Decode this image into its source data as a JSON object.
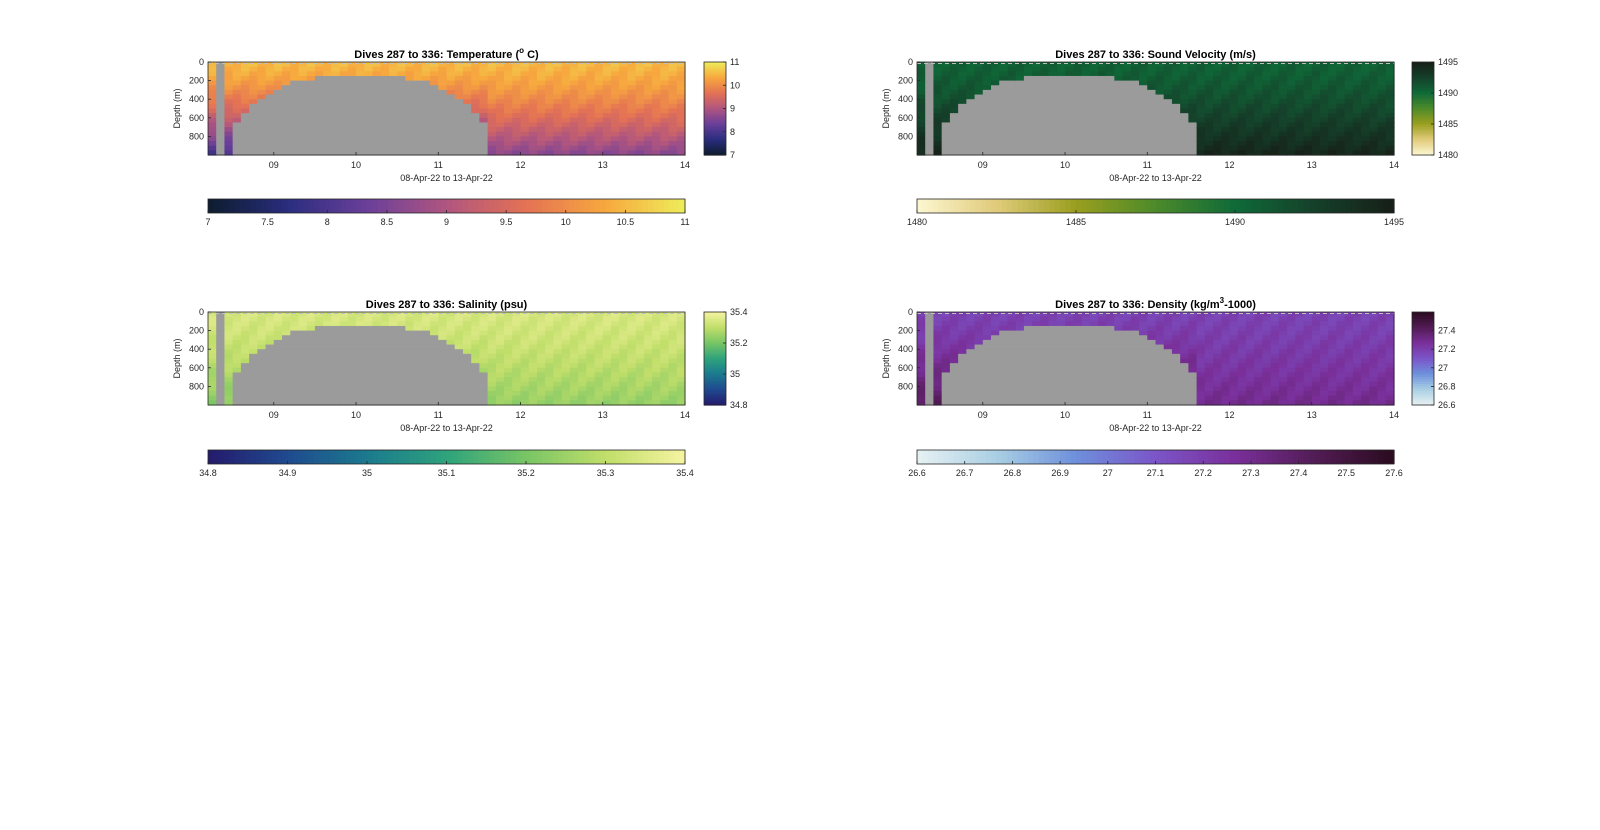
{
  "chart_data": [
    {
      "id": "temperature",
      "type": "heatmap",
      "title": "Dives 287 to 336: Temperature (",
      "title_sup": "o",
      "title_end": " C)",
      "xlabel": "08-Apr-22 to 13-Apr-22",
      "ylabel": "Depth (m)",
      "x_ticks": [
        "09",
        "10",
        "11",
        "12",
        "13",
        "14"
      ],
      "x_tick_values": [
        9,
        10,
        11,
        12,
        13,
        14
      ],
      "xlim": [
        8.2,
        14.0
      ],
      "y_ticks": [
        "0",
        "200",
        "400",
        "600",
        "800"
      ],
      "y_tick_values": [
        0,
        200,
        400,
        600,
        800
      ],
      "ylim": [
        0,
        1000
      ],
      "cbar_side_ticks": [
        "7",
        "8",
        "9",
        "10",
        "11"
      ],
      "cbar_side_values": [
        7,
        8,
        9,
        10,
        11
      ],
      "cbar_bottom_ticks": [
        "7",
        "7.5",
        "8",
        "8.5",
        "9",
        "9.5",
        "10",
        "10.5",
        "11"
      ],
      "cbar_bottom_values": [
        7,
        7.5,
        8,
        8.5,
        9,
        9.5,
        10,
        10.5,
        11
      ],
      "clim": [
        7,
        11
      ],
      "colormap": [
        "#0d1c2e",
        "#2a2d7e",
        "#6a3f9a",
        "#b0557f",
        "#e47254",
        "#f7a83e",
        "#eeed5a"
      ],
      "surface_value": 10.5,
      "deep_value_west": 7.9,
      "deep_value_east": 8.6,
      "gap_color": "#9b9b9b"
    },
    {
      "id": "sound-velocity",
      "type": "heatmap",
      "title": "Dives 287 to 336: Sound Velocity (m/s)",
      "xlabel": "08-Apr-22 to 13-Apr-22",
      "ylabel": "Depth (m)",
      "x_ticks": [
        "09",
        "10",
        "11",
        "12",
        "13",
        "14"
      ],
      "x_tick_values": [
        9,
        10,
        11,
        12,
        13,
        14
      ],
      "xlim": [
        8.2,
        14.0
      ],
      "y_ticks": [
        "0",
        "200",
        "400",
        "600",
        "800"
      ],
      "y_tick_values": [
        0,
        200,
        400,
        600,
        800
      ],
      "ylim": [
        0,
        1000
      ],
      "cbar_side_ticks": [
        "1480",
        "1485",
        "1490",
        "1495"
      ],
      "cbar_side_values": [
        1480,
        1485,
        1490,
        1495
      ],
      "cbar_bottom_ticks": [
        "1480",
        "1485",
        "1490",
        "1495"
      ],
      "cbar_bottom_values": [
        1480,
        1485,
        1490,
        1495
      ],
      "clim": [
        1480,
        1495
      ],
      "colormap": [
        "#fdf7d2",
        "#e0cb7a",
        "#9a9f1f",
        "#4c8a2a",
        "#0f6a38",
        "#15402a",
        "#161f17"
      ],
      "surface_value": 1490.5,
      "deep_value_west": 1494.5,
      "deep_value_east": 1494.5,
      "gap_color": "#9b9b9b"
    },
    {
      "id": "salinity",
      "type": "heatmap",
      "title": "Dives 287 to 336: Salinity (psu)",
      "xlabel": "08-Apr-22 to 13-Apr-22",
      "ylabel": "Depth (m)",
      "x_ticks": [
        "09",
        "10",
        "11",
        "12",
        "13",
        "14"
      ],
      "x_tick_values": [
        9,
        10,
        11,
        12,
        13,
        14
      ],
      "xlim": [
        8.2,
        14.0
      ],
      "y_ticks": [
        "0",
        "200",
        "400",
        "600",
        "800"
      ],
      "y_tick_values": [
        0,
        200,
        400,
        600,
        800
      ],
      "ylim": [
        0,
        1000
      ],
      "cbar_side_ticks": [
        "34.8",
        "35",
        "35.2",
        "35.4"
      ],
      "cbar_side_values": [
        34.8,
        35,
        35.2,
        35.4
      ],
      "cbar_bottom_ticks": [
        "34.8",
        "34.9",
        "35",
        "35.1",
        "35.2",
        "35.3",
        "35.4"
      ],
      "cbar_bottom_values": [
        34.8,
        34.9,
        35,
        35.1,
        35.2,
        35.3,
        35.4
      ],
      "clim": [
        34.8,
        35.4
      ],
      "colormap": [
        "#241a6c",
        "#1f4a8f",
        "#1b7a8e",
        "#2ea37c",
        "#78c565",
        "#c1de6a",
        "#f6f4a1"
      ],
      "surface_value": 35.34,
      "deep_value_west": 35.22,
      "deep_value_east": 35.24,
      "gap_color": "#9b9b9b"
    },
    {
      "id": "density",
      "type": "heatmap",
      "title": "Dives 287 to 336: Density (kg/m",
      "title_sup": "3",
      "title_end": "-1000)",
      "xlabel": "08-Apr-22 to 13-Apr-22",
      "ylabel": "Depth (m)",
      "x_ticks": [
        "09",
        "10",
        "11",
        "12",
        "13",
        "14"
      ],
      "x_tick_values": [
        9,
        10,
        11,
        12,
        13,
        14
      ],
      "xlim": [
        8.2,
        14.0
      ],
      "y_ticks": [
        "0",
        "200",
        "400",
        "600",
        "800"
      ],
      "y_tick_values": [
        0,
        200,
        400,
        600,
        800
      ],
      "ylim": [
        0,
        1000
      ],
      "cbar_side_ticks": [
        "26.6",
        "26.8",
        "27",
        "27.2",
        "27.4"
      ],
      "cbar_side_values": [
        26.6,
        26.8,
        27,
        27.2,
        27.4
      ],
      "cbar_side_clim": [
        26.6,
        27.6
      ],
      "cbar_bottom_ticks": [
        "26.6",
        "26.7",
        "26.8",
        "26.9",
        "27",
        "27.1",
        "27.2",
        "27.3",
        "27.4",
        "27.5",
        "27.6"
      ],
      "cbar_bottom_values": [
        26.6,
        26.7,
        26.8,
        26.9,
        27,
        27.1,
        27.2,
        27.3,
        27.4,
        27.5,
        27.6
      ],
      "clim": [
        26.6,
        27.6
      ],
      "colormap": [
        "#e7f1f2",
        "#a9cfe4",
        "#6e90dc",
        "#7b55c8",
        "#7a2f9a",
        "#521c55",
        "#2a0b1f"
      ],
      "surface_value": 27.18,
      "deep_value_west": 27.42,
      "deep_value_east": 27.3,
      "gap_color": "#9b9b9b"
    }
  ]
}
